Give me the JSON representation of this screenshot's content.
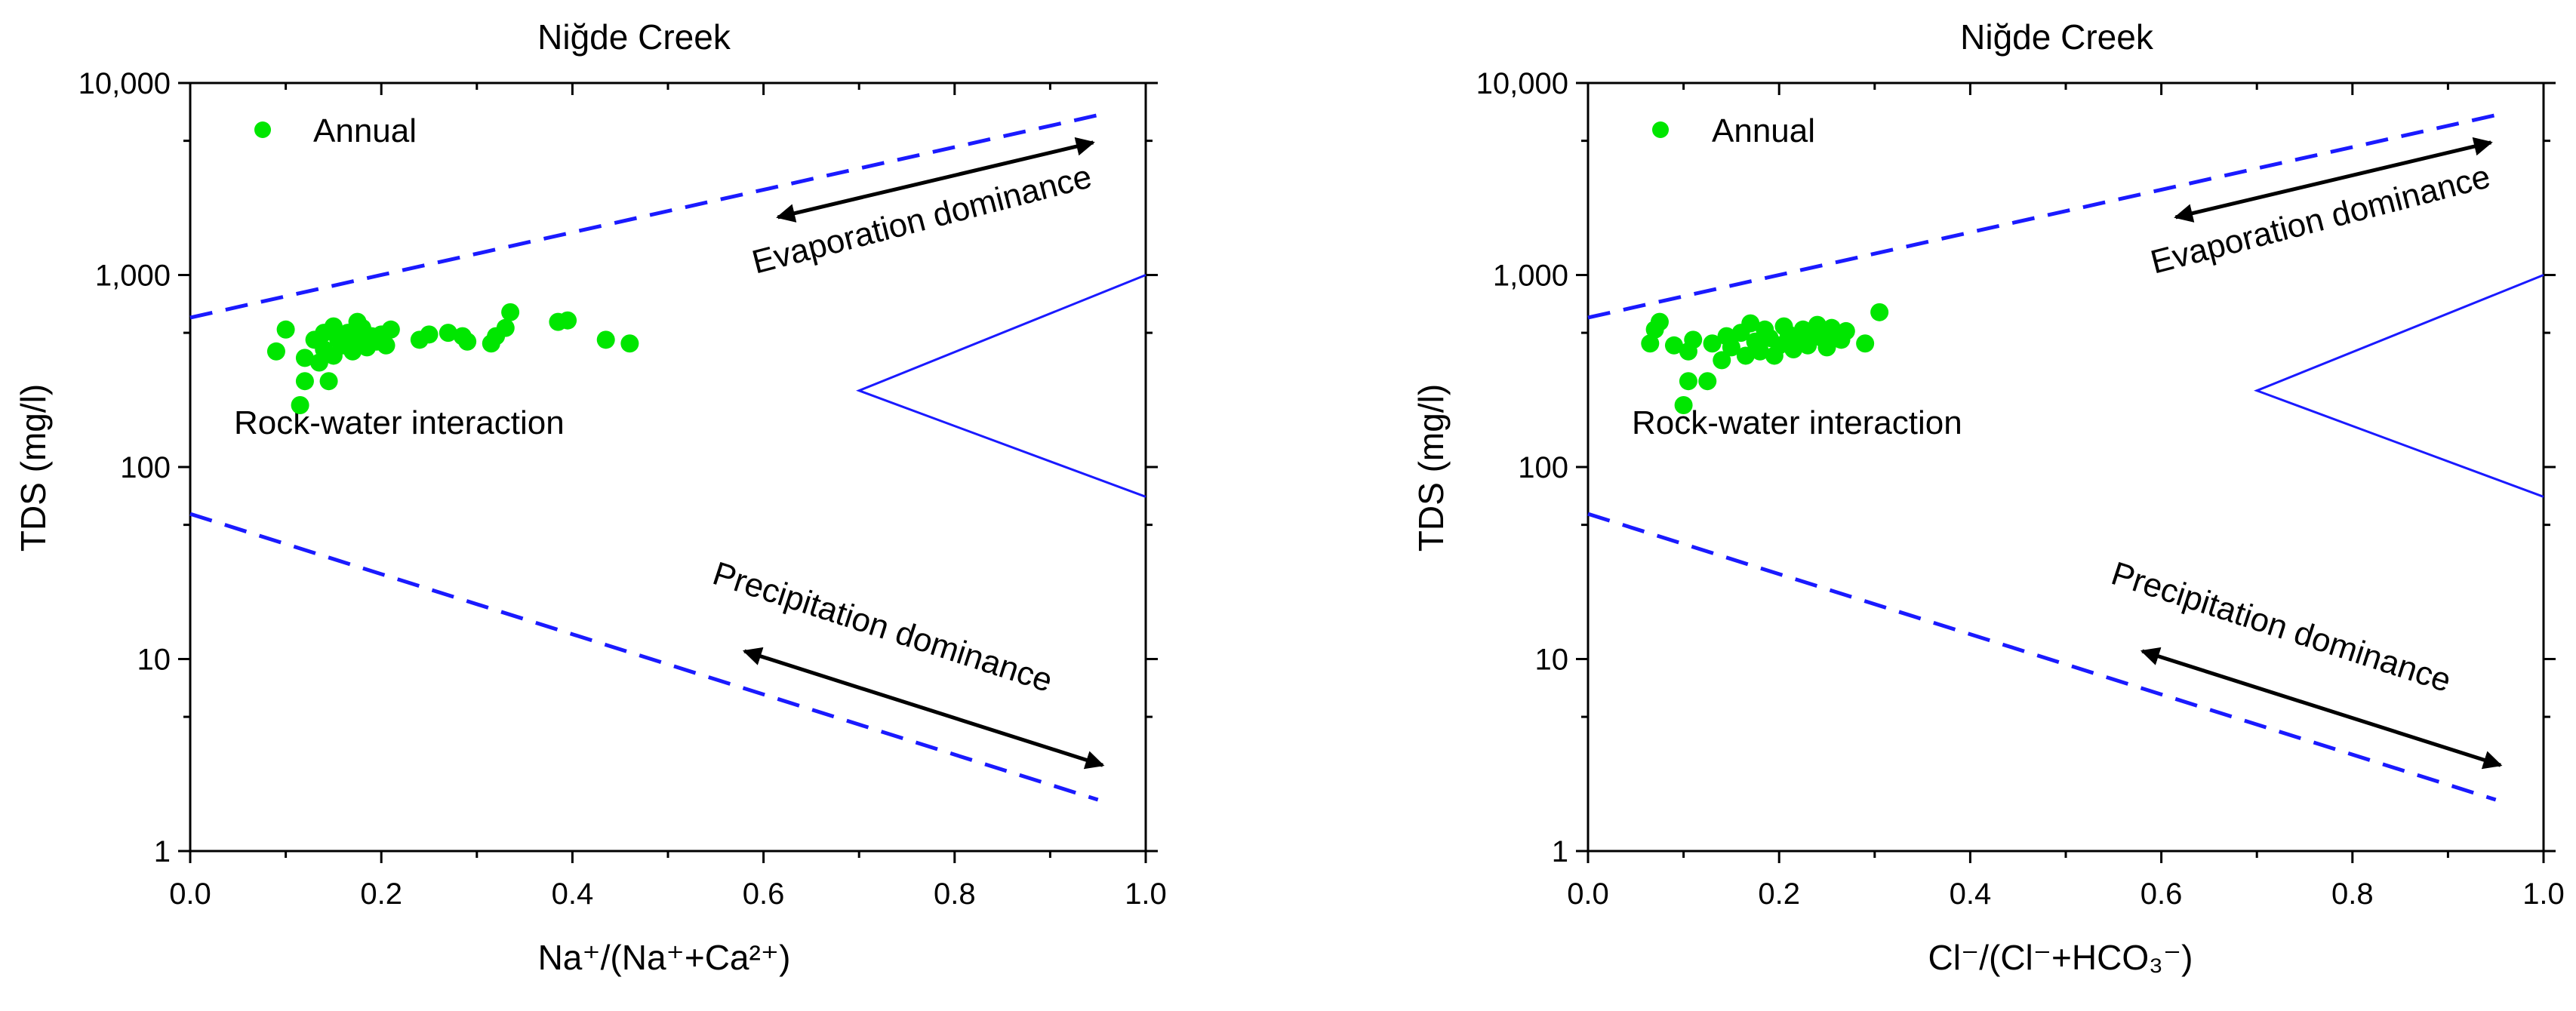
{
  "chart_data": [
    {
      "type": "scatter",
      "title": "Niğde Creek",
      "xlabel": "Na⁺/(Na⁺+Ca²⁺)",
      "ylabel": "TDS (mg/l)",
      "xlim": [
        0,
        1
      ],
      "ylim": [
        1,
        10000
      ],
      "yscale": "log",
      "xticks": [
        "0.0",
        "0.2",
        "0.4",
        "0.6",
        "0.8",
        "1.0"
      ],
      "yticks": [
        "1",
        "10",
        "100",
        "1,000",
        "10,000"
      ],
      "legend": {
        "label": "Annual",
        "color": "#00e600",
        "position": "top-left"
      },
      "annotations": {
        "evaporation": "Evaporation dominance",
        "rock": "Rock-water interaction",
        "precipitation": "Precipitation dominance"
      },
      "boundaries": {
        "upper_dashed": [
          [
            0,
            600
          ],
          [
            0.95,
            6800
          ]
        ],
        "lower_dashed": [
          [
            0,
            57
          ],
          [
            0.95,
            1.85
          ]
        ],
        "rock_wedge": [
          [
            1.0,
            1000
          ],
          [
            0.7,
            250
          ],
          [
            1.0,
            70
          ]
        ],
        "line_color": "#1a1aff"
      },
      "series": [
        {
          "name": "Annual",
          "color": "#00e600",
          "points": [
            [
              0.09,
              400
            ],
            [
              0.1,
              520
            ],
            [
              0.115,
              210
            ],
            [
              0.12,
              280
            ],
            [
              0.12,
              370
            ],
            [
              0.13,
              460
            ],
            [
              0.135,
              350
            ],
            [
              0.14,
              500
            ],
            [
              0.14,
              410
            ],
            [
              0.145,
              280
            ],
            [
              0.15,
              540
            ],
            [
              0.15,
              380
            ],
            [
              0.155,
              460
            ],
            [
              0.16,
              430
            ],
            [
              0.165,
              500
            ],
            [
              0.17,
              400
            ],
            [
              0.175,
              470
            ],
            [
              0.18,
              530
            ],
            [
              0.185,
              420
            ],
            [
              0.19,
              480
            ],
            [
              0.175,
              570
            ],
            [
              0.195,
              450
            ],
            [
              0.2,
              490
            ],
            [
              0.205,
              430
            ],
            [
              0.21,
              520
            ],
            [
              0.24,
              460
            ],
            [
              0.25,
              490
            ],
            [
              0.27,
              500
            ],
            [
              0.285,
              480
            ],
            [
              0.29,
              450
            ],
            [
              0.315,
              440
            ],
            [
              0.32,
              480
            ],
            [
              0.33,
              530
            ],
            [
              0.335,
              640
            ],
            [
              0.385,
              570
            ],
            [
              0.395,
              580
            ],
            [
              0.435,
              460
            ],
            [
              0.46,
              440
            ]
          ]
        }
      ]
    },
    {
      "type": "scatter",
      "title": "Niğde Creek",
      "xlabel": "Cl⁻/(Cl⁻+HCO₃⁻)",
      "ylabel": "TDS (mg/l)",
      "xlim": [
        0,
        1
      ],
      "ylim": [
        1,
        10000
      ],
      "yscale": "log",
      "xticks": [
        "0.0",
        "0.2",
        "0.4",
        "0.6",
        "0.8",
        "1.0"
      ],
      "yticks": [
        "1",
        "10",
        "100",
        "1,000",
        "10,000"
      ],
      "legend": {
        "label": "Annual",
        "color": "#00e600",
        "position": "top-left"
      },
      "annotations": {
        "evaporation": "Evaporation dominance",
        "rock": "Rock-water interaction",
        "precipitation": "Precipitation dominance"
      },
      "boundaries": {
        "upper_dashed": [
          [
            0,
            600
          ],
          [
            0.95,
            6800
          ]
        ],
        "lower_dashed": [
          [
            0,
            57
          ],
          [
            0.95,
            1.85
          ]
        ],
        "rock_wedge": [
          [
            1.0,
            1000
          ],
          [
            0.7,
            250
          ],
          [
            1.0,
            70
          ]
        ],
        "line_color": "#1a1aff"
      },
      "series": [
        {
          "name": "Annual",
          "color": "#00e600",
          "points": [
            [
              0.065,
              440
            ],
            [
              0.07,
              520
            ],
            [
              0.075,
              570
            ],
            [
              0.09,
              430
            ],
            [
              0.1,
              210
            ],
            [
              0.105,
              280
            ],
            [
              0.105,
              400
            ],
            [
              0.11,
              460
            ],
            [
              0.125,
              280
            ],
            [
              0.13,
              440
            ],
            [
              0.14,
              360
            ],
            [
              0.145,
              480
            ],
            [
              0.15,
              420
            ],
            [
              0.16,
              500
            ],
            [
              0.165,
              380
            ],
            [
              0.17,
              560
            ],
            [
              0.175,
              450
            ],
            [
              0.18,
              400
            ],
            [
              0.185,
              520
            ],
            [
              0.19,
              470
            ],
            [
              0.195,
              380
            ],
            [
              0.2,
              430
            ],
            [
              0.205,
              540
            ],
            [
              0.21,
              490
            ],
            [
              0.215,
              410
            ],
            [
              0.22,
              460
            ],
            [
              0.225,
              520
            ],
            [
              0.23,
              430
            ],
            [
              0.235,
              500
            ],
            [
              0.24,
              550
            ],
            [
              0.245,
              470
            ],
            [
              0.25,
              420
            ],
            [
              0.255,
              530
            ],
            [
              0.26,
              480
            ],
            [
              0.265,
              460
            ],
            [
              0.27,
              510
            ],
            [
              0.29,
              440
            ],
            [
              0.305,
              640
            ]
          ]
        }
      ]
    }
  ]
}
